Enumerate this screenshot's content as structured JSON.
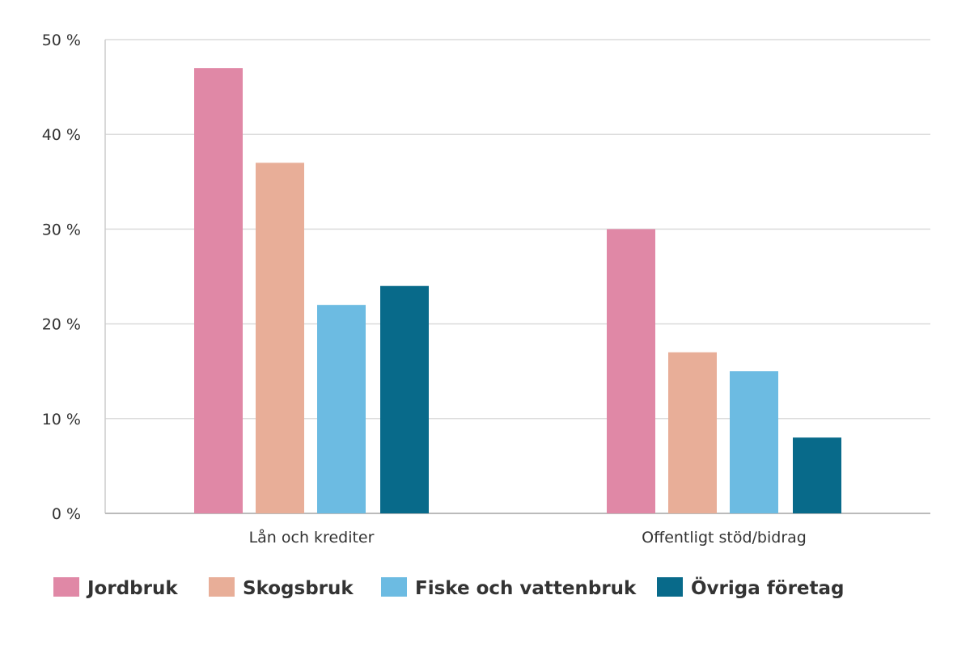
{
  "chart_data": {
    "type": "bar",
    "title": "",
    "xlabel": "",
    "ylabel": "",
    "categories": [
      "Lån och krediter",
      "Offentligt stöd/bidrag"
    ],
    "series": [
      {
        "name": "Jordbruk",
        "color": "#e088a6",
        "values": [
          47,
          30
        ]
      },
      {
        "name": "Skogsbruk",
        "color": "#e8ae98",
        "values": [
          37,
          17
        ]
      },
      {
        "name": "Fiske och vattenbruk",
        "color": "#6cbbe2",
        "values": [
          22,
          15
        ]
      },
      {
        "name": "Övriga företag",
        "color": "#086a8a",
        "values": [
          24,
          8
        ]
      }
    ],
    "ylim": [
      0,
      50
    ],
    "yticks": [
      0,
      10,
      20,
      30,
      40,
      50
    ],
    "ytick_labels": [
      "0 %",
      "10 %",
      "20 %",
      "30 %",
      "40 %",
      "50 %"
    ],
    "grid": true,
    "legend_position": "bottom-left"
  }
}
